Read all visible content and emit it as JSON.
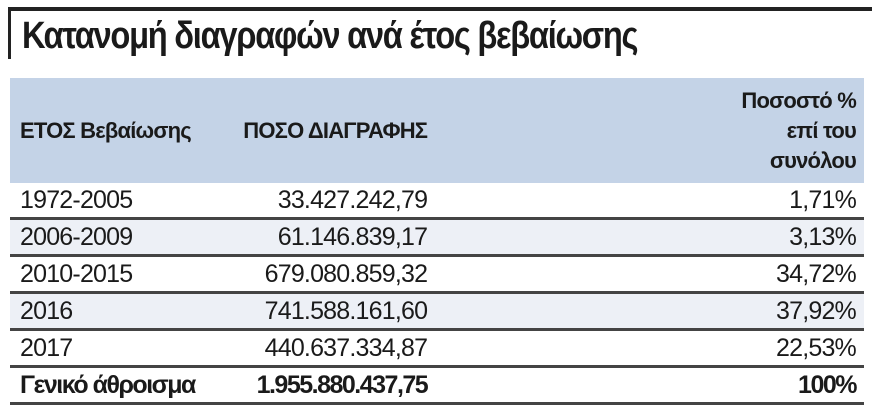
{
  "title": "Κατανομή διαγραφών ανά έτος βεβαίωσης",
  "colors": {
    "header_bg": "#c4d3e7",
    "alt_row_bg": "#edf0f6",
    "rule": "#444444"
  },
  "table": {
    "headers": [
      "ΕΤΟΣ Βεβαίωσης",
      "ΠΟΣΟ ΔΙΑΓΡΑΦΗΣ",
      "Ποσοστό % επί του συνόλου"
    ],
    "header3_lines": [
      "Ποσοστό %",
      "επί του",
      "συνόλου"
    ],
    "rows": [
      [
        "1972-2005",
        "33.427.242,79",
        "1,71%"
      ],
      [
        "2006-2009",
        "61.146.839,17",
        "3,13%"
      ],
      [
        "2010-2015",
        "679.080.859,32",
        "34,72%"
      ],
      [
        "2016",
        "741.588.161,60",
        "37,92%"
      ],
      [
        "2017",
        "440.637.334,87",
        "22,53%"
      ]
    ],
    "total": [
      "Γενικό άθροισμα",
      "1.955.880.437,75",
      "100%"
    ]
  }
}
